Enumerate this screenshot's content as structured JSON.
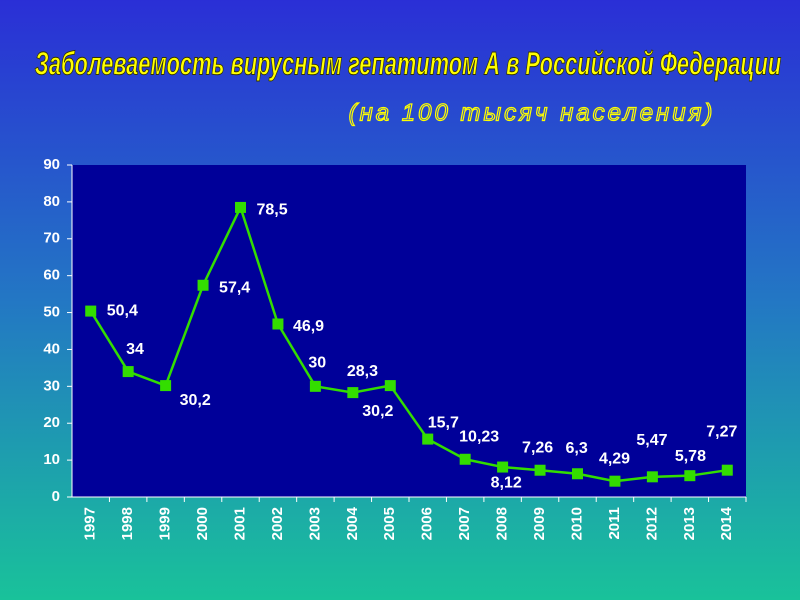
{
  "chart_data": {
    "type": "line",
    "title": "Заболеваемость вирусным гепатитом А в Российской Федерации",
    "subtitle": "(на 100 тысяч населения)",
    "categories": [
      "1997",
      "1998",
      "1999",
      "2000",
      "2001",
      "2002",
      "2003",
      "2004",
      "2005",
      "2006",
      "2007",
      "2008",
      "2009",
      "2010",
      "2011",
      "2012",
      "2013",
      "2014"
    ],
    "series": [
      {
        "color": "#33dd00",
        "values": [
          50.4,
          34,
          30.2,
          57.4,
          78.5,
          46.9,
          30,
          28.3,
          30.2,
          15.7,
          10.23,
          8.12,
          7.26,
          6.3,
          4.29,
          5.47,
          5.78,
          7.27
        ],
        "value_labels": [
          "50,4",
          "34",
          "30,2",
          "57,4",
          "78,5",
          "46,9",
          "30",
          "28,3",
          "30,2",
          "15,7",
          "10,23",
          "8,12",
          "7,26",
          "6,3",
          "4,29",
          "5,47",
          "5,78",
          "7,27"
        ]
      }
    ],
    "ylim": [
      0,
      90
    ],
    "yticks": [
      0,
      10,
      20,
      30,
      40,
      50,
      60,
      70,
      80,
      90
    ]
  }
}
